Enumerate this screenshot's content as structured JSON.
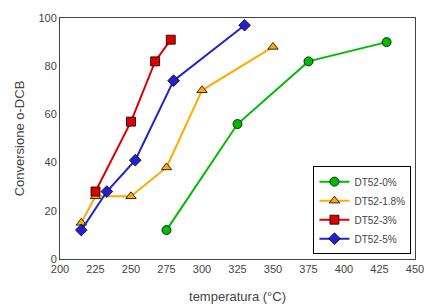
{
  "chart_data": {
    "type": "line",
    "xlabel": "temperatura (°C)",
    "ylabel": "Conversione o-DCB",
    "xlim": [
      200,
      450
    ],
    "ylim": [
      0,
      100
    ],
    "xticks": [
      200,
      225,
      250,
      275,
      300,
      325,
      350,
      375,
      400,
      425,
      450
    ],
    "yticks": [
      0,
      20,
      40,
      60,
      80,
      100
    ],
    "grid": false,
    "legend": "lower right",
    "series": [
      {
        "name": "DT52-0%",
        "color": "#00bb00",
        "marker": "circle",
        "x": [
          275,
          325,
          375,
          430
        ],
        "values": [
          12,
          56,
          82,
          90
        ]
      },
      {
        "name": "DT52-1.8%",
        "color": "#ffaa00",
        "marker": "triangle",
        "x": [
          215,
          225,
          250,
          275,
          300,
          350
        ],
        "values": [
          15,
          26,
          26,
          38,
          70,
          88
        ]
      },
      {
        "name": "DT52-3%",
        "color": "#dd0000",
        "marker": "square",
        "x": [
          225,
          250,
          267,
          278
        ],
        "values": [
          28,
          57,
          82,
          91
        ]
      },
      {
        "name": "DT52-5%",
        "color": "#2222cc",
        "marker": "diamond",
        "x": [
          215,
          233,
          253,
          280,
          330
        ],
        "values": [
          12,
          28,
          41,
          74,
          97
        ]
      }
    ]
  }
}
